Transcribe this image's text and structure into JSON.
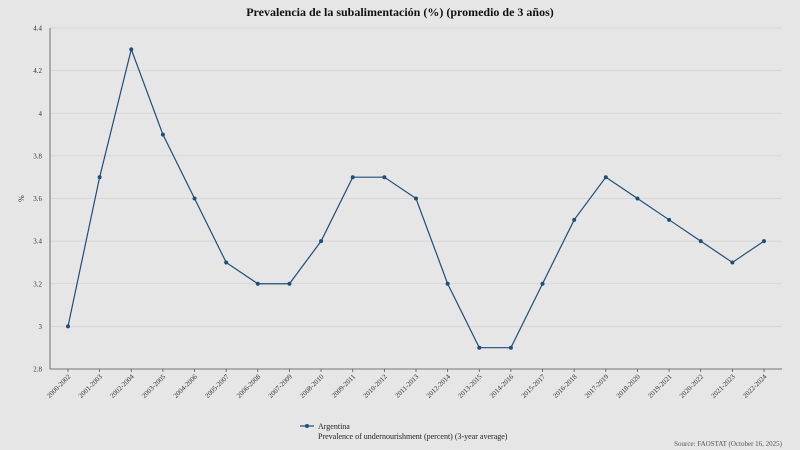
{
  "chart_data": {
    "type": "line",
    "title": "Prevalencia de la subalimentación (%) (promedio de 3 años)",
    "ylabel": "%",
    "xlabel": "",
    "ylim": [
      2.8,
      4.4
    ],
    "yticks": [
      "2.8",
      "3",
      "3.2",
      "3.4",
      "3.6",
      "3.8",
      "4",
      "4.2",
      "4.4"
    ],
    "yticks_values": [
      2.8,
      3.0,
      3.2,
      3.4,
      3.6,
      3.8,
      4.0,
      4.2,
      4.4
    ],
    "grid": true,
    "legend_position": "bottom",
    "categories": [
      "2000-2002",
      "2001-2003",
      "2002-2004",
      "2003-2005",
      "2004-2006",
      "2005-2007",
      "2006-2008",
      "2007-2009",
      "2008-2010",
      "2009-2011",
      "2010-2012",
      "2011-2013",
      "2012-2014",
      "2013-2015",
      "2014-2016",
      "2015-2017",
      "2016-2018",
      "2017-2019",
      "2018-2020",
      "2019-2021",
      "2020-2022",
      "2021-2023",
      "2022-2024"
    ],
    "series": [
      {
        "name": "Argentina",
        "values": [
          3.0,
          3.7,
          4.3,
          3.9,
          3.6,
          3.3,
          3.2,
          3.2,
          3.4,
          3.7,
          3.7,
          3.6,
          3.2,
          2.9,
          2.9,
          3.2,
          3.5,
          3.7,
          3.6,
          3.5,
          3.4,
          3.3,
          3.4
        ]
      }
    ],
    "legend_subtitle": "Prevalence of undernourishment (percent) (3-year average)",
    "source": "Source: FAOSTAT (October 16, 2025)",
    "colors": {
      "series": "#1f4e79",
      "background": "#e6e6e6",
      "grid": "#d2d2d2"
    }
  }
}
